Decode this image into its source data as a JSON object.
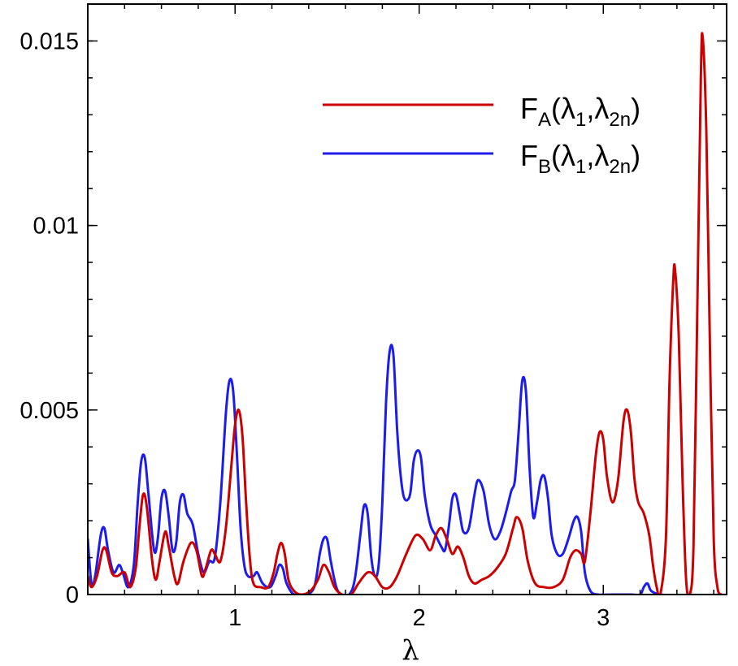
{
  "chart_data": {
    "type": "line",
    "xlabel": "λ",
    "ylabel": "",
    "xlim": [
      0.2,
      3.67
    ],
    "ylim": [
      0,
      0.016
    ],
    "x_ticks": [
      {
        "value": 1,
        "label": "1"
      },
      {
        "value": 2,
        "label": "2"
      },
      {
        "value": 3,
        "label": "3"
      }
    ],
    "y_ticks": [
      {
        "value": 0,
        "label": "0"
      },
      {
        "value": 0.005,
        "label": "0.005"
      },
      {
        "value": 0.01,
        "label": "0.01"
      },
      {
        "value": 0.015,
        "label": "0.015"
      }
    ],
    "x_minor_step": 0.2,
    "y_minor_step": 0.001,
    "grid": false,
    "legend_position": "top-right",
    "series": [
      {
        "legend": {
          "main": "F",
          "sub": "A",
          "args": [
            "λ",
            "1",
            "λ",
            "2n"
          ]
        },
        "color": "#cc0000",
        "points": [
          [
            0.2,
            0.0005
          ],
          [
            0.22,
            0.0002
          ],
          [
            0.25,
            0.0005
          ],
          [
            0.28,
            0.0012
          ],
          [
            0.3,
            0.0012
          ],
          [
            0.33,
            0.0006
          ],
          [
            0.36,
            0.0005
          ],
          [
            0.4,
            0.0006
          ],
          [
            0.43,
            0.0002
          ],
          [
            0.46,
            0.0007
          ],
          [
            0.48,
            0.0018
          ],
          [
            0.5,
            0.0027
          ],
          [
            0.52,
            0.0024
          ],
          [
            0.55,
            0.0009
          ],
          [
            0.57,
            0.0004
          ],
          [
            0.59,
            0.0009
          ],
          [
            0.62,
            0.0017
          ],
          [
            0.64,
            0.0013
          ],
          [
            0.67,
            0.0005
          ],
          [
            0.69,
            0.0003
          ],
          [
            0.72,
            0.0009
          ],
          [
            0.76,
            0.0014
          ],
          [
            0.79,
            0.0012
          ],
          [
            0.82,
            0.0005
          ],
          [
            0.84,
            0.0007
          ],
          [
            0.87,
            0.0012
          ],
          [
            0.89,
            0.0011
          ],
          [
            0.92,
            0.0009
          ],
          [
            0.95,
            0.0018
          ],
          [
            0.98,
            0.0035
          ],
          [
            1.0,
            0.0046
          ],
          [
            1.02,
            0.005
          ],
          [
            1.04,
            0.0043
          ],
          [
            1.06,
            0.0025
          ],
          [
            1.08,
            0.001
          ],
          [
            1.1,
            0.0003
          ],
          [
            1.14,
            0.0002
          ],
          [
            1.18,
            0.0002
          ],
          [
            1.21,
            0.0006
          ],
          [
            1.23,
            0.0011
          ],
          [
            1.25,
            0.0014
          ],
          [
            1.27,
            0.0011
          ],
          [
            1.29,
            0.0004
          ],
          [
            1.32,
            0.0001
          ],
          [
            1.36,
            0.0
          ],
          [
            1.41,
            0.0001
          ],
          [
            1.45,
            0.0004
          ],
          [
            1.48,
            0.0008
          ],
          [
            1.51,
            0.0006
          ],
          [
            1.54,
            0.0002
          ],
          [
            1.58,
            0.0
          ],
          [
            1.63,
            0.0
          ],
          [
            1.67,
            0.0003
          ],
          [
            1.72,
            0.0006
          ],
          [
            1.76,
            0.0005
          ],
          [
            1.8,
            0.0002
          ],
          [
            1.84,
            0.0002
          ],
          [
            1.88,
            0.0005
          ],
          [
            1.93,
            0.0011
          ],
          [
            1.98,
            0.0016
          ],
          [
            2.02,
            0.0015
          ],
          [
            2.06,
            0.0012
          ],
          [
            2.09,
            0.0016
          ],
          [
            2.12,
            0.0018
          ],
          [
            2.15,
            0.0015
          ],
          [
            2.18,
            0.0011
          ],
          [
            2.21,
            0.0013
          ],
          [
            2.24,
            0.001
          ],
          [
            2.27,
            0.0005
          ],
          [
            2.3,
            0.0003
          ],
          [
            2.34,
            0.0004
          ],
          [
            2.38,
            0.0005
          ],
          [
            2.42,
            0.0007
          ],
          [
            2.47,
            0.0011
          ],
          [
            2.51,
            0.0018
          ],
          [
            2.53,
            0.0021
          ],
          [
            2.56,
            0.0018
          ],
          [
            2.59,
            0.0009
          ],
          [
            2.63,
            0.0003
          ],
          [
            2.68,
            0.0002
          ],
          [
            2.73,
            0.0002
          ],
          [
            2.78,
            0.0004
          ],
          [
            2.82,
            0.001
          ],
          [
            2.85,
            0.0012
          ],
          [
            2.88,
            0.0011
          ],
          [
            2.9,
            0.0009
          ],
          [
            2.93,
            0.0022
          ],
          [
            2.96,
            0.0038
          ],
          [
            2.98,
            0.0044
          ],
          [
            3.0,
            0.0042
          ],
          [
            3.02,
            0.0032
          ],
          [
            3.05,
            0.0025
          ],
          [
            3.08,
            0.0031
          ],
          [
            3.11,
            0.0047
          ],
          [
            3.13,
            0.005
          ],
          [
            3.15,
            0.0044
          ],
          [
            3.17,
            0.0031
          ],
          [
            3.19,
            0.0025
          ],
          [
            3.22,
            0.0022
          ],
          [
            3.25,
            0.0016
          ],
          [
            3.27,
            0.0008
          ],
          [
            3.29,
            0.0002
          ],
          [
            3.31,
            0.0
          ],
          [
            3.34,
            0.0015
          ],
          [
            3.36,
            0.0058
          ],
          [
            3.38,
            0.0085
          ],
          [
            3.39,
            0.0088
          ],
          [
            3.41,
            0.007
          ],
          [
            3.43,
            0.0032
          ],
          [
            3.45,
            0.0004
          ],
          [
            3.47,
            0.0
          ],
          [
            3.49,
            0.0013
          ],
          [
            3.51,
            0.0075
          ],
          [
            3.53,
            0.014
          ],
          [
            3.54,
            0.0151
          ],
          [
            3.56,
            0.0125
          ],
          [
            3.58,
            0.0065
          ],
          [
            3.6,
            0.0015
          ],
          [
            3.62,
            0.0002
          ],
          [
            3.64,
            0.0
          ]
        ]
      },
      {
        "legend": {
          "main": "F",
          "sub": "B",
          "args": [
            "λ",
            "1",
            "λ",
            "2n"
          ]
        },
        "color": "#1c1cee",
        "points": [
          [
            0.2,
            0.0015
          ],
          [
            0.22,
            0.0003
          ],
          [
            0.24,
            0.0005
          ],
          [
            0.27,
            0.0016
          ],
          [
            0.29,
            0.0018
          ],
          [
            0.31,
            0.0012
          ],
          [
            0.34,
            0.0006
          ],
          [
            0.37,
            0.0008
          ],
          [
            0.39,
            0.0006
          ],
          [
            0.42,
            0.0002
          ],
          [
            0.45,
            0.0008
          ],
          [
            0.47,
            0.0024
          ],
          [
            0.49,
            0.0036
          ],
          [
            0.51,
            0.0037
          ],
          [
            0.53,
            0.0027
          ],
          [
            0.56,
            0.0012
          ],
          [
            0.58,
            0.0015
          ],
          [
            0.6,
            0.0026
          ],
          [
            0.62,
            0.0028
          ],
          [
            0.64,
            0.0021
          ],
          [
            0.66,
            0.0012
          ],
          [
            0.68,
            0.0014
          ],
          [
            0.7,
            0.0025
          ],
          [
            0.72,
            0.0027
          ],
          [
            0.74,
            0.0022
          ],
          [
            0.77,
            0.0019
          ],
          [
            0.8,
            0.0011
          ],
          [
            0.83,
            0.0006
          ],
          [
            0.86,
            0.0009
          ],
          [
            0.89,
            0.001
          ],
          [
            0.92,
            0.0025
          ],
          [
            0.95,
            0.0049
          ],
          [
            0.97,
            0.0058
          ],
          [
            0.99,
            0.0055
          ],
          [
            1.01,
            0.0038
          ],
          [
            1.03,
            0.0018
          ],
          [
            1.05,
            0.0008
          ],
          [
            1.07,
            0.0005
          ],
          [
            1.1,
            0.0005
          ],
          [
            1.12,
            0.0006
          ],
          [
            1.15,
            0.0003
          ],
          [
            1.19,
            0.0002
          ],
          [
            1.22,
            0.0005
          ],
          [
            1.24,
            0.0008
          ],
          [
            1.26,
            0.0007
          ],
          [
            1.28,
            0.0003
          ],
          [
            1.32,
            0.0
          ],
          [
            1.38,
            0.0
          ],
          [
            1.43,
            0.0002
          ],
          [
            1.46,
            0.0011
          ],
          [
            1.48,
            0.0015
          ],
          [
            1.5,
            0.0015
          ],
          [
            1.52,
            0.0009
          ],
          [
            1.55,
            0.0002
          ],
          [
            1.58,
            0.0
          ],
          [
            1.62,
            0.0
          ],
          [
            1.65,
            0.0004
          ],
          [
            1.68,
            0.0016
          ],
          [
            1.7,
            0.0024
          ],
          [
            1.72,
            0.0022
          ],
          [
            1.74,
            0.001
          ],
          [
            1.76,
            0.0005
          ],
          [
            1.78,
            0.0008
          ],
          [
            1.8,
            0.0025
          ],
          [
            1.82,
            0.0052
          ],
          [
            1.84,
            0.0066
          ],
          [
            1.86,
            0.0065
          ],
          [
            1.88,
            0.0045
          ],
          [
            1.9,
            0.0032
          ],
          [
            1.92,
            0.0026
          ],
          [
            1.95,
            0.0027
          ],
          [
            1.97,
            0.0036
          ],
          [
            1.99,
            0.0039
          ],
          [
            2.01,
            0.0037
          ],
          [
            2.03,
            0.0027
          ],
          [
            2.06,
            0.0019
          ],
          [
            2.09,
            0.0016
          ],
          [
            2.12,
            0.0013
          ],
          [
            2.14,
            0.0012
          ],
          [
            2.16,
            0.0018
          ],
          [
            2.18,
            0.0026
          ],
          [
            2.2,
            0.0027
          ],
          [
            2.22,
            0.0022
          ],
          [
            2.24,
            0.0017
          ],
          [
            2.27,
            0.0018
          ],
          [
            2.3,
            0.0027
          ],
          [
            2.32,
            0.0031
          ],
          [
            2.35,
            0.0028
          ],
          [
            2.38,
            0.0019
          ],
          [
            2.41,
            0.0015
          ],
          [
            2.44,
            0.0017
          ],
          [
            2.47,
            0.0022
          ],
          [
            2.5,
            0.0028
          ],
          [
            2.52,
            0.0031
          ],
          [
            2.54,
            0.0044
          ],
          [
            2.56,
            0.0058
          ],
          [
            2.58,
            0.0055
          ],
          [
            2.6,
            0.0034
          ],
          [
            2.62,
            0.0021
          ],
          [
            2.64,
            0.0025
          ],
          [
            2.66,
            0.0031
          ],
          [
            2.68,
            0.0032
          ],
          [
            2.7,
            0.0026
          ],
          [
            2.72,
            0.0016
          ],
          [
            2.75,
            0.0011
          ],
          [
            2.78,
            0.0011
          ],
          [
            2.81,
            0.0015
          ],
          [
            2.84,
            0.002
          ],
          [
            2.86,
            0.0021
          ],
          [
            2.88,
            0.0017
          ],
          [
            2.9,
            0.0006
          ],
          [
            2.93,
            0.0001
          ],
          [
            2.97,
            0.0
          ],
          [
            3.05,
            0.0
          ],
          [
            3.15,
            0.0
          ],
          [
            3.2,
            0.0
          ],
          [
            3.22,
            0.0002
          ],
          [
            3.24,
            0.0003
          ],
          [
            3.26,
            0.0001
          ],
          [
            3.3,
            0.0
          ]
        ]
      }
    ]
  }
}
